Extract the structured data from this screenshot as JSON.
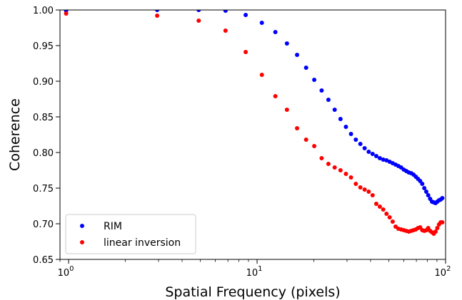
{
  "chart_data": {
    "type": "scatter",
    "title": "",
    "xlabel": "Spatial Frequency (pixels)",
    "ylabel": "Coherence",
    "xscale": "log",
    "xlim": [
      0.9,
      100
    ],
    "ylim": [
      0.65,
      1.0
    ],
    "xticks": [
      {
        "value": 1,
        "base": "10",
        "exp": "0"
      },
      {
        "value": 10,
        "base": "10",
        "exp": "1"
      },
      {
        "value": 100,
        "base": "10",
        "exp": "2"
      }
    ],
    "yticks": [
      "0.65",
      "0.70",
      "0.75",
      "0.80",
      "0.85",
      "0.90",
      "0.95",
      "1.00"
    ],
    "legend_position": "lower-left",
    "grid": false,
    "series": [
      {
        "name": "RIM",
        "color": "#0000ff",
        "points": [
          [
            0.97,
            0.999
          ],
          [
            2.95,
            1.0
          ],
          [
            4.9,
            1.0
          ],
          [
            6.8,
            0.999
          ],
          [
            8.7,
            0.993
          ],
          [
            10.6,
            0.982
          ],
          [
            12.5,
            0.969
          ],
          [
            14.4,
            0.953
          ],
          [
            16.3,
            0.937
          ],
          [
            18.2,
            0.919
          ],
          [
            20.1,
            0.902
          ],
          [
            22.0,
            0.887
          ],
          [
            23.9,
            0.874
          ],
          [
            25.8,
            0.86
          ],
          [
            27.7,
            0.847
          ],
          [
            29.6,
            0.836
          ],
          [
            31.5,
            0.826
          ],
          [
            33.4,
            0.818
          ],
          [
            35.3,
            0.812
          ],
          [
            37.2,
            0.806
          ],
          [
            39.1,
            0.801
          ],
          [
            41.0,
            0.798
          ],
          [
            42.9,
            0.795
          ],
          [
            44.8,
            0.792
          ],
          [
            46.7,
            0.79
          ],
          [
            48.6,
            0.789
          ],
          [
            50.5,
            0.787
          ],
          [
            52.4,
            0.785
          ],
          [
            54.3,
            0.783
          ],
          [
            56.2,
            0.781
          ],
          [
            58.1,
            0.779
          ],
          [
            60.0,
            0.776
          ],
          [
            61.9,
            0.774
          ],
          [
            63.8,
            0.772
          ],
          [
            65.7,
            0.771
          ],
          [
            67.6,
            0.769
          ],
          [
            69.5,
            0.766
          ],
          [
            71.4,
            0.763
          ],
          [
            73.3,
            0.76
          ],
          [
            75.2,
            0.756
          ],
          [
            77.1,
            0.75
          ],
          [
            79.0,
            0.745
          ],
          [
            80.9,
            0.74
          ],
          [
            82.8,
            0.735
          ],
          [
            84.7,
            0.731
          ],
          [
            86.6,
            0.73
          ],
          [
            88.5,
            0.729
          ],
          [
            90.4,
            0.731
          ],
          [
            92.3,
            0.733
          ],
          [
            94.2,
            0.734
          ],
          [
            96.1,
            0.736
          ]
        ]
      },
      {
        "name": "linear inversion",
        "color": "#ff0000",
        "points": [
          [
            0.97,
            0.995
          ],
          [
            2.95,
            0.992
          ],
          [
            4.9,
            0.985
          ],
          [
            6.8,
            0.971
          ],
          [
            8.7,
            0.941
          ],
          [
            10.6,
            0.909
          ],
          [
            12.5,
            0.879
          ],
          [
            14.4,
            0.86
          ],
          [
            16.3,
            0.834
          ],
          [
            18.2,
            0.818
          ],
          [
            20.1,
            0.809
          ],
          [
            22.0,
            0.792
          ],
          [
            23.9,
            0.784
          ],
          [
            25.8,
            0.779
          ],
          [
            27.7,
            0.775
          ],
          [
            29.6,
            0.77
          ],
          [
            31.5,
            0.765
          ],
          [
            33.4,
            0.756
          ],
          [
            35.3,
            0.751
          ],
          [
            37.2,
            0.748
          ],
          [
            39.1,
            0.745
          ],
          [
            41.0,
            0.74
          ],
          [
            42.9,
            0.728
          ],
          [
            44.8,
            0.724
          ],
          [
            46.7,
            0.72
          ],
          [
            48.6,
            0.714
          ],
          [
            50.5,
            0.709
          ],
          [
            52.4,
            0.703
          ],
          [
            54.3,
            0.696
          ],
          [
            56.2,
            0.693
          ],
          [
            58.1,
            0.692
          ],
          [
            60.0,
            0.691
          ],
          [
            61.9,
            0.69
          ],
          [
            63.8,
            0.689
          ],
          [
            65.7,
            0.69
          ],
          [
            67.6,
            0.691
          ],
          [
            69.5,
            0.692
          ],
          [
            71.4,
            0.694
          ],
          [
            73.3,
            0.695
          ],
          [
            75.2,
            0.691
          ],
          [
            77.1,
            0.69
          ],
          [
            79.0,
            0.691
          ],
          [
            80.9,
            0.694
          ],
          [
            82.8,
            0.69
          ],
          [
            84.7,
            0.688
          ],
          [
            86.6,
            0.686
          ],
          [
            88.5,
            0.689
          ],
          [
            90.4,
            0.694
          ],
          [
            92.3,
            0.699
          ],
          [
            94.2,
            0.702
          ],
          [
            96.1,
            0.702
          ]
        ]
      }
    ]
  }
}
